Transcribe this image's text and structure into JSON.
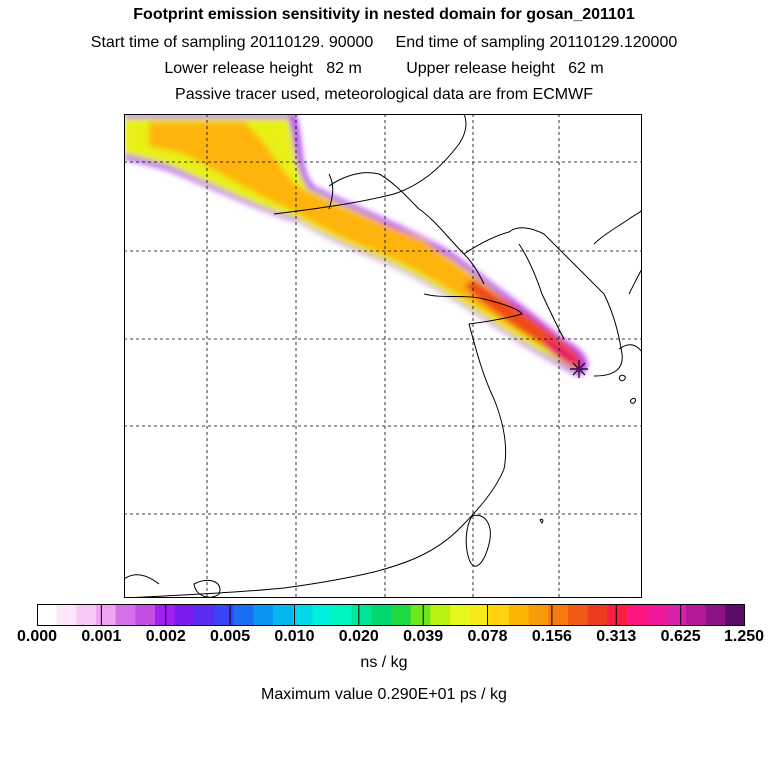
{
  "header": {
    "line1": "Footprint emission sensitivity in nested domain for gosan_201101",
    "line2": "Start time of sampling 20110129. 90000     End time of sampling 20110129.120000",
    "line3": "Lower release height   82 m          Upper release height   62 m",
    "line4": "Passive tracer used, meteorological data are from ECMWF"
  },
  "colorbar": {
    "tick_labels": [
      "0.000",
      "0.001",
      "0.002",
      "0.005",
      "0.010",
      "0.020",
      "0.039",
      "0.078",
      "0.156",
      "0.313",
      "0.625",
      "1.250"
    ],
    "colors": [
      "#ffffff",
      "#fde6fb",
      "#f7c8f3",
      "#f0a4ef",
      "#d670ea",
      "#c44de6",
      "#a020f0",
      "#7a1cf0",
      "#5a2cf2",
      "#3a44f4",
      "#1d6ef5",
      "#0a96f2",
      "#05b6f0",
      "#00d8ea",
      "#00f0e0",
      "#00f5bf",
      "#00e59a",
      "#00d870",
      "#20d840",
      "#6ee61c",
      "#b8f212",
      "#e4f81c",
      "#f8e818",
      "#ffd10e",
      "#ffb206",
      "#f89a0a",
      "#f57b10",
      "#f05a14",
      "#ee3a1e",
      "#f81e42",
      "#ff1480",
      "#f0189a",
      "#d820a8",
      "#b8189c",
      "#8c1286",
      "#5a0c66"
    ],
    "unit": "ns / kg",
    "max_value": "Maximum value  0.290E+01 ps / kg"
  },
  "map": {
    "receptor": "gosan",
    "colors": {
      "outer": "#b03cf0",
      "mid": "#e8f018",
      "core": "#ffb40c",
      "hot": "#f04c14",
      "peak": "#e8146a",
      "coast": "#000000",
      "grid": "#000000"
    }
  }
}
